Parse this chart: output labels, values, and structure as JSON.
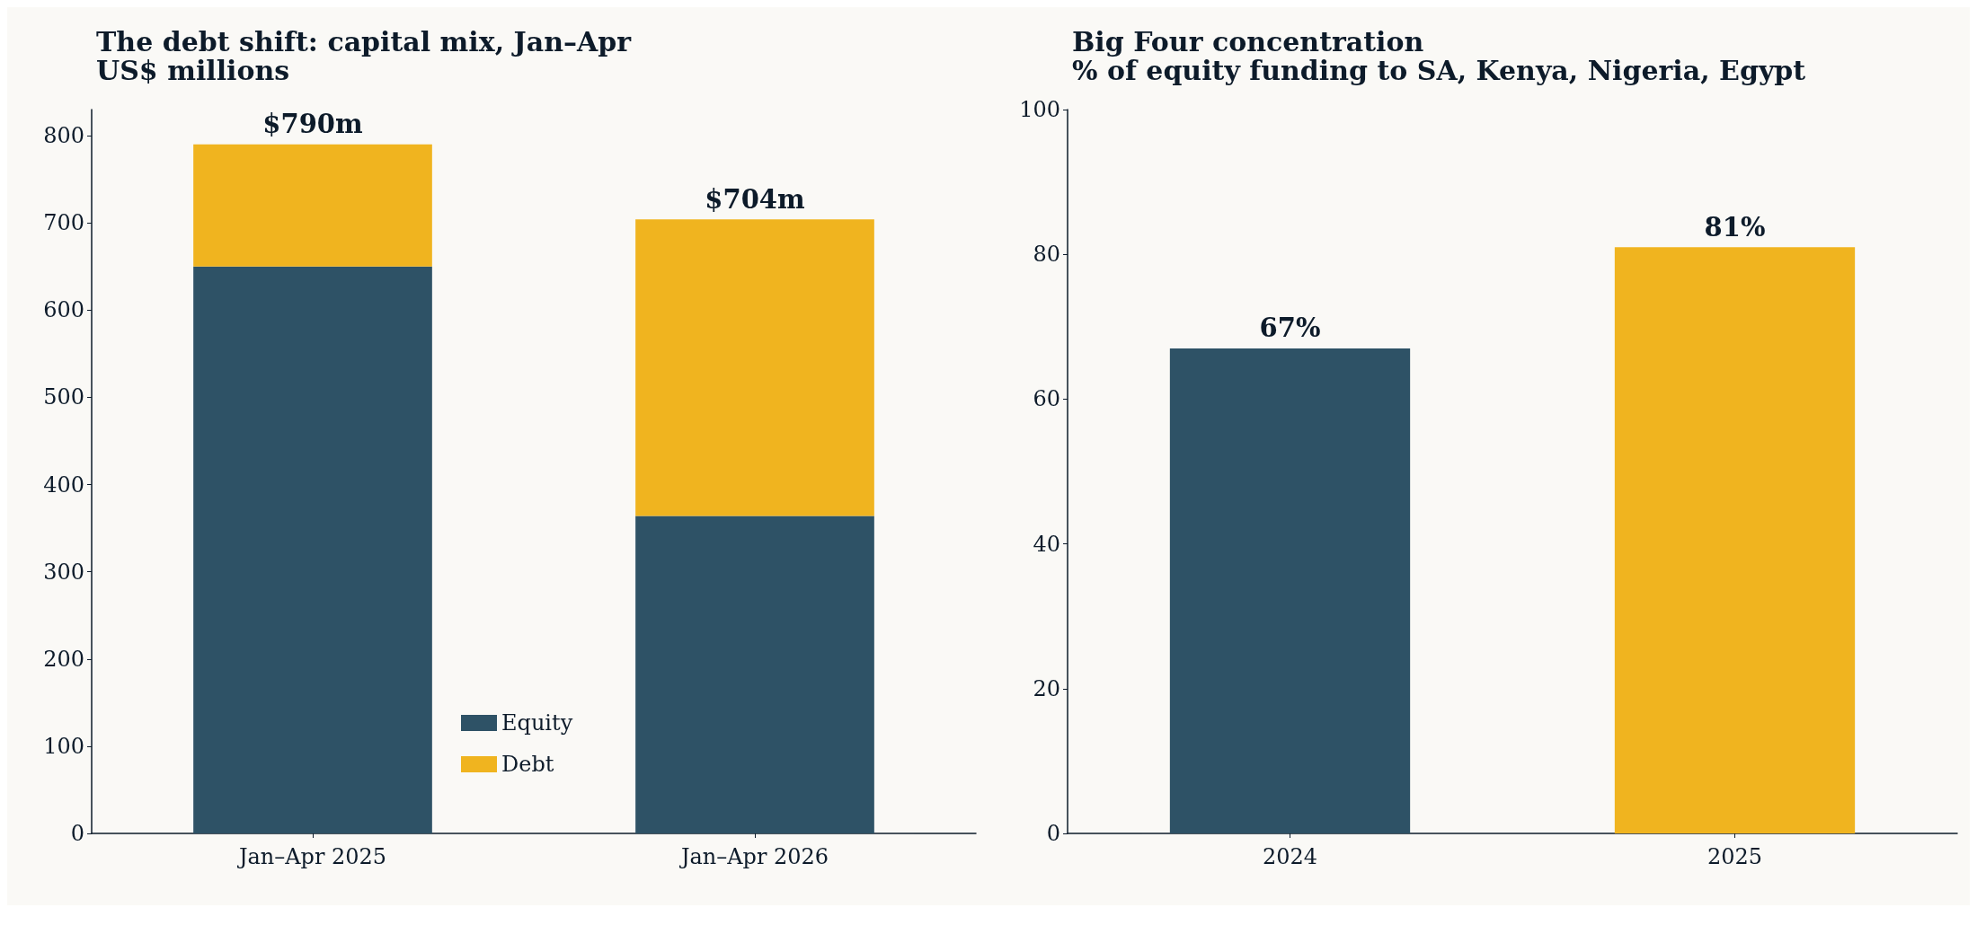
{
  "chart_data": [
    {
      "type": "bar",
      "title": "The debt shift: capital mix, Jan–Apr",
      "subtitle": "US$ millions",
      "categories": [
        "Jan–Apr 2025",
        "Jan–Apr 2026"
      ],
      "stacked": true,
      "series": [
        {
          "name": "Equity",
          "color": "#2e5266",
          "values": [
            650,
            364
          ]
        },
        {
          "name": "Debt",
          "color": "#f0b41f",
          "values": [
            140,
            340
          ]
        }
      ],
      "totals": [
        "$790m",
        "$704m"
      ],
      "ylim": [
        0,
        830
      ],
      "yticks": [
        0,
        100,
        200,
        300,
        400,
        500,
        600,
        700,
        800
      ],
      "grid": false,
      "legend": "bottom"
    },
    {
      "type": "bar",
      "title": "Big Four concentration",
      "subtitle": "% of equity funding to SA, Kenya, Nigeria, Egypt",
      "categories": [
        "2024",
        "2025"
      ],
      "values": [
        67,
        81
      ],
      "colors": [
        "#2e5266",
        "#f0b41f"
      ],
      "value_labels": [
        "67%",
        "81%"
      ],
      "ylim": [
        0,
        100
      ],
      "yticks": [
        0,
        20,
        40,
        60,
        80,
        100
      ],
      "grid": false,
      "legend": false
    }
  ]
}
